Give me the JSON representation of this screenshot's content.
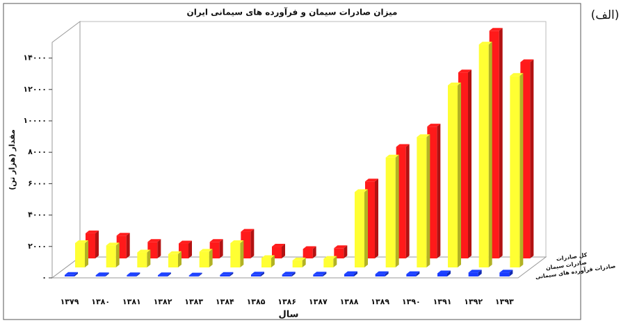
{
  "panel_label": "(الف)",
  "chart_data": {
    "type": "bar3d",
    "title": "میزان صادرات سیمان و فرآورده های سیمانی ایران",
    "y_label": "مقدار (هزار تن)",
    "x_label": "سال",
    "categories": [
      "۱۳۷۹",
      "۱۳۸۰",
      "۱۳۸۱",
      "۱۳۸۲",
      "۱۳۸۳",
      "۱۳۸۴",
      "۱۳۸۵",
      "۱۳۸۶",
      "۱۳۸۷",
      "۱۳۸۸",
      "۱۳۸۹",
      "۱۳۹۰",
      "۱۳۹۱",
      "۱۳۹۲",
      "۱۳۹۳"
    ],
    "series": [
      {
        "name": "کل صادرات",
        "color": "#ff1a1a",
        "values": [
          1600,
          1450,
          1050,
          950,
          1050,
          1700,
          750,
          600,
          650,
          4900,
          7100,
          8400,
          11850,
          14500,
          12500
        ]
      },
      {
        "name": "صادرات سیمان",
        "color": "#ffff33",
        "values": [
          1550,
          1400,
          950,
          850,
          1000,
          1550,
          600,
          450,
          550,
          4800,
          7000,
          8300,
          11600,
          14200,
          12200
        ]
      },
      {
        "name": "صادرات فرآورده های سیمانی",
        "color": "#1a3cff",
        "values": [
          100,
          80,
          80,
          80,
          60,
          100,
          120,
          120,
          120,
          150,
          150,
          150,
          200,
          250,
          250
        ]
      }
    ],
    "ylim": [
      0,
      15000
    ],
    "yticks": [
      {
        "value": 0,
        "label": "۰"
      },
      {
        "value": 2000,
        "label": "۲۰۰۰"
      },
      {
        "value": 4000,
        "label": "۴۰۰۰"
      },
      {
        "value": 6000,
        "label": "۶۰۰۰"
      },
      {
        "value": 8000,
        "label": "۸۰۰۰"
      },
      {
        "value": 10000,
        "label": "۱۰۰۰۰"
      },
      {
        "value": 12000,
        "label": "۱۲۰۰۰"
      },
      {
        "value": 14000,
        "label": "۱۴۰۰۰"
      }
    ]
  }
}
